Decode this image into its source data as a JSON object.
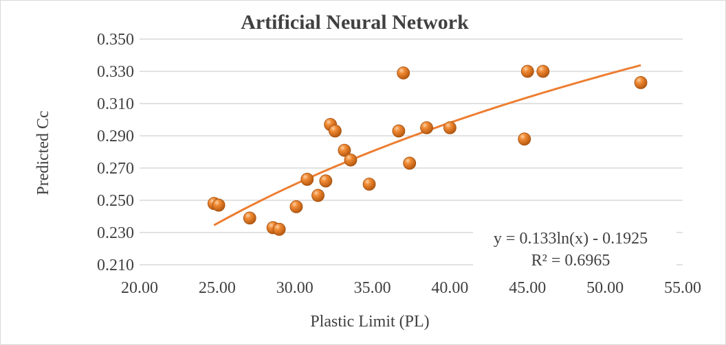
{
  "chart_data": {
    "type": "scatter",
    "title": "Artificial Neural Network",
    "xlabel": "Plastic Limit (PL)",
    "ylabel": "Predicted Cc",
    "xlim": [
      20,
      55
    ],
    "ylim": [
      0.21,
      0.35
    ],
    "xticks": [
      "20.00",
      "25.00",
      "30.00",
      "35.00",
      "40.00",
      "45.00",
      "50.00",
      "55.00"
    ],
    "yticks": [
      "0.210",
      "0.230",
      "0.250",
      "0.270",
      "0.290",
      "0.310",
      "0.330",
      "0.350"
    ],
    "grid": "horizontal",
    "marker_color": "#E8761E",
    "trend_color": "#ED7D31",
    "points": [
      {
        "x": 24.8,
        "y": 0.248
      },
      {
        "x": 25.1,
        "y": 0.247
      },
      {
        "x": 27.1,
        "y": 0.239
      },
      {
        "x": 28.6,
        "y": 0.233
      },
      {
        "x": 29.0,
        "y": 0.232
      },
      {
        "x": 30.1,
        "y": 0.246
      },
      {
        "x": 30.8,
        "y": 0.263
      },
      {
        "x": 31.5,
        "y": 0.253
      },
      {
        "x": 32.0,
        "y": 0.262
      },
      {
        "x": 32.3,
        "y": 0.297
      },
      {
        "x": 32.6,
        "y": 0.293
      },
      {
        "x": 33.2,
        "y": 0.281
      },
      {
        "x": 33.6,
        "y": 0.275
      },
      {
        "x": 34.8,
        "y": 0.26
      },
      {
        "x": 36.7,
        "y": 0.293
      },
      {
        "x": 37.0,
        "y": 0.329
      },
      {
        "x": 37.4,
        "y": 0.273
      },
      {
        "x": 38.5,
        "y": 0.295
      },
      {
        "x": 40.0,
        "y": 0.295
      },
      {
        "x": 44.8,
        "y": 0.288
      },
      {
        "x": 45.0,
        "y": 0.33
      },
      {
        "x": 46.0,
        "y": 0.33
      },
      {
        "x": 52.3,
        "y": 0.323
      }
    ],
    "trendline": {
      "type": "logarithmic",
      "a": 0.133,
      "b": -0.1925,
      "x_range": [
        24.8,
        52.3
      ],
      "equation": "y = 0.133ln(x) - 0.1925",
      "r2_label": "R² = 0.6965"
    }
  }
}
